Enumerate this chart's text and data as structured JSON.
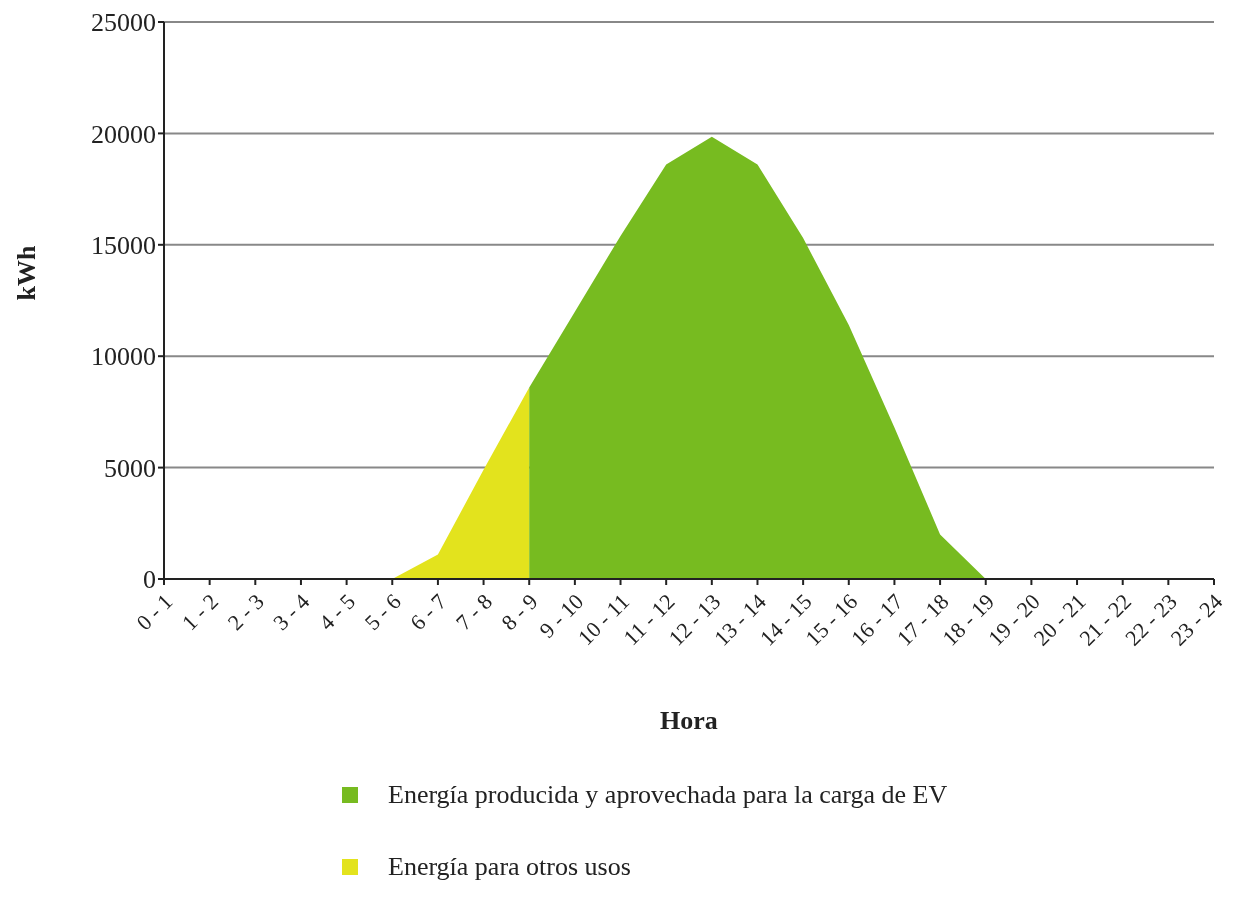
{
  "chart_data": {
    "type": "area",
    "xlabel": "Hora",
    "ylabel": "kWh",
    "categories": [
      "0 - 1",
      "1 - 2",
      "2 - 3",
      "3 - 4",
      "4 - 5",
      "5 - 6",
      "6 - 7",
      "7 - 8",
      "8 - 9",
      "9 - 10",
      "10 - 11",
      "11 - 12",
      "12 - 13",
      "13 - 14",
      "14 - 15",
      "15 - 16",
      "16 - 17",
      "17 - 18",
      "18 - 19",
      "19 - 20",
      "20 - 21",
      "21 - 22",
      "22 - 23",
      "23 - 24"
    ],
    "series": [
      {
        "name": "Energía producida y aprovechada para la carga de EV",
        "color": "#77bb20",
        "values": [
          null,
          null,
          null,
          null,
          null,
          null,
          null,
          null,
          8600,
          12000,
          15400,
          18600,
          19850,
          18600,
          15300,
          11400,
          6800,
          2000,
          0,
          null,
          null,
          null,
          null,
          null
        ]
      },
      {
        "name": "Energía para otros usos",
        "color": "#e3e31d",
        "values": [
          0,
          0,
          0,
          0,
          0,
          0,
          1100,
          4900,
          8600,
          null,
          null,
          null,
          null,
          null,
          null,
          null,
          null,
          null,
          null,
          null,
          null,
          null,
          null,
          null
        ]
      }
    ],
    "ylim": [
      0,
      25000
    ],
    "yticks": [
      0,
      5000,
      10000,
      15000,
      20000,
      25000
    ],
    "grid": "y",
    "legend": "bottom"
  }
}
